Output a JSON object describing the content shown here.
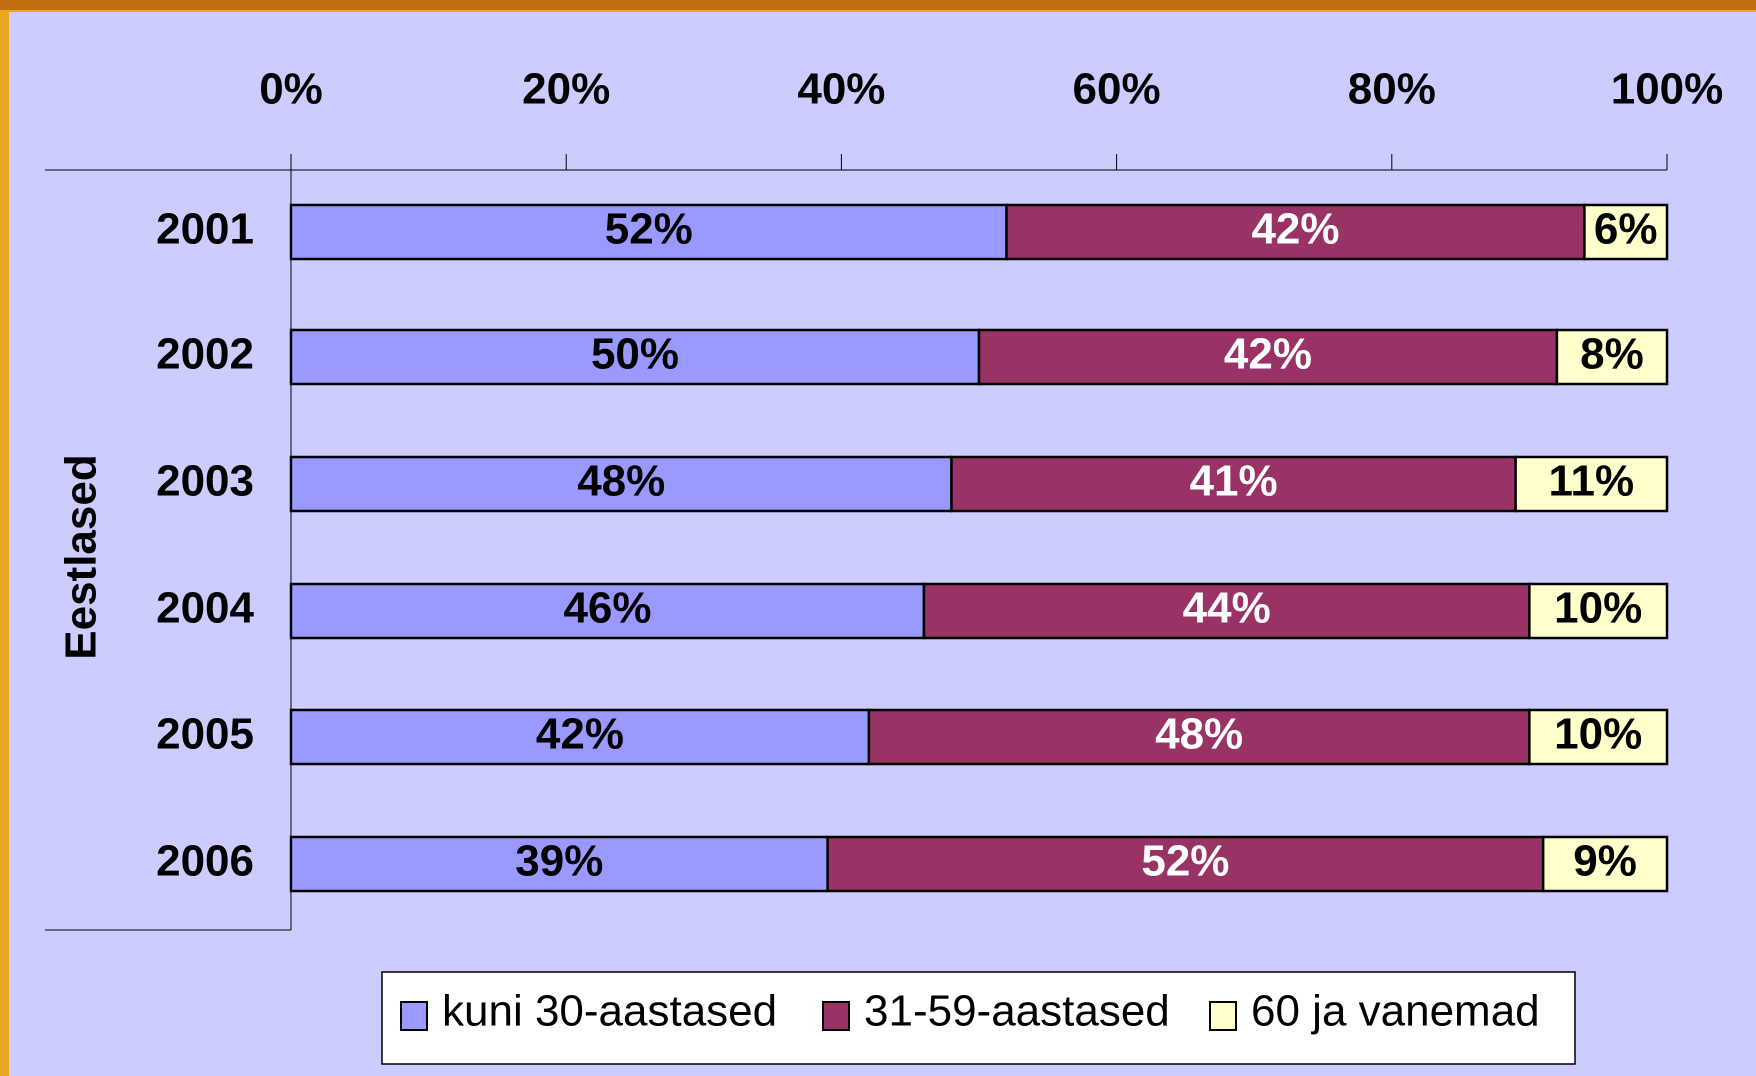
{
  "chart_data": {
    "type": "stacked-bar-horizontal",
    "y_label": "Eestlased",
    "categories": [
      "2001",
      "2002",
      "2003",
      "2004",
      "2005",
      "2006"
    ],
    "series": [
      {
        "name": "kuni 30-aastased",
        "color": "#9999ff",
        "label_color": "#000000",
        "values": [
          52,
          50,
          48,
          46,
          42,
          39
        ],
        "value_labels": [
          "52%",
          "50%",
          "48%",
          "46%",
          "42%",
          "39%"
        ]
      },
      {
        "name": "31-59-aastased",
        "color": "#993366",
        "label_color": "#ffffff",
        "values": [
          42,
          42,
          41,
          44,
          48,
          52
        ],
        "value_labels": [
          "42%",
          "42%",
          "41%",
          "44%",
          "48%",
          "52%"
        ]
      },
      {
        "name": "60 ja vanemad",
        "color": "#ffffcc",
        "label_color": "#000000",
        "values": [
          6,
          8,
          11,
          10,
          10,
          9
        ],
        "value_labels": [
          "6%",
          "8%",
          "11%",
          "10%",
          "10%",
          "9%"
        ]
      }
    ],
    "xlim": [
      0,
      100
    ],
    "xticks": [
      {
        "value": 0,
        "label": "0%"
      },
      {
        "value": 20,
        "label": "20%"
      },
      {
        "value": 40,
        "label": "40%"
      },
      {
        "value": 60,
        "label": "60%"
      },
      {
        "value": 80,
        "label": "80%"
      },
      {
        "value": 100,
        "label": "100%"
      }
    ],
    "legend": "bottom"
  }
}
